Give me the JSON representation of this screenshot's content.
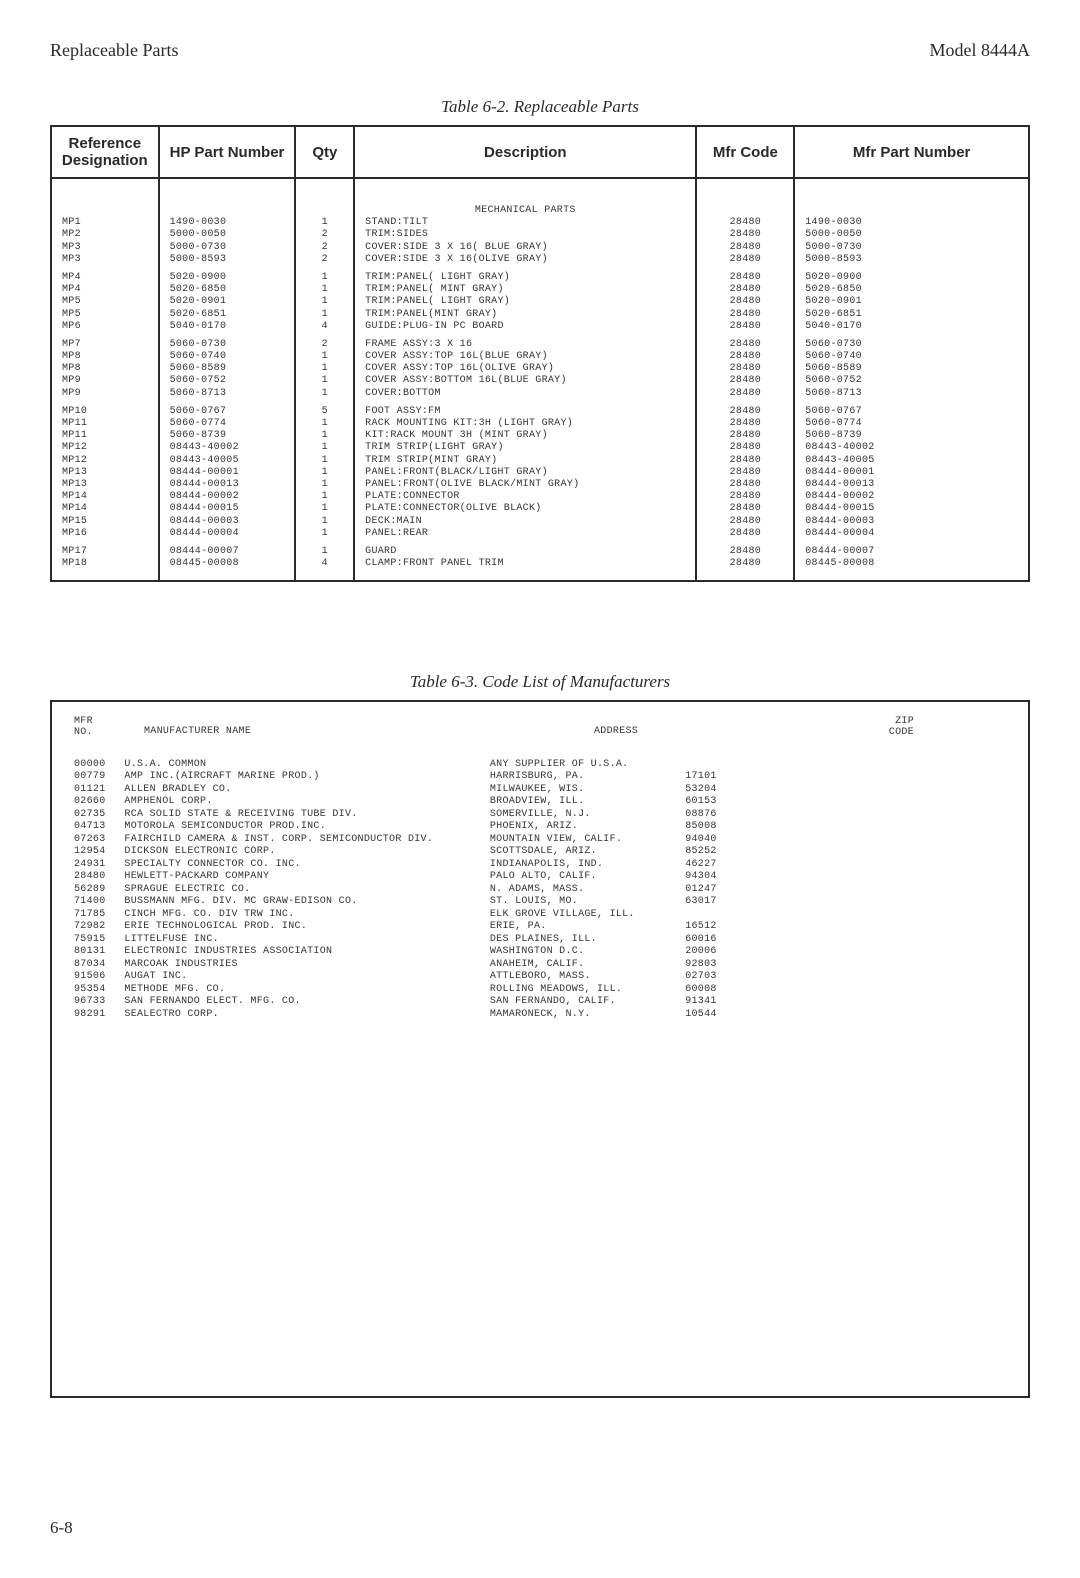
{
  "header": {
    "left": "Replaceable Parts",
    "right": "Model 8444A"
  },
  "table62": {
    "caption": "Table 6-2.  Replaceable Parts",
    "columns": [
      "Reference Designation",
      "HP Part Number",
      "Qty",
      "Description",
      "Mfr Code",
      "Mfr Part Number"
    ],
    "section_heading": "MECHANICAL PARTS",
    "groups": [
      [
        {
          "ref": "MP1",
          "hp": "1490-0030",
          "qty": "1",
          "desc": "STAND:TILT",
          "mfr": "28480",
          "mpn": "1490-0030"
        },
        {
          "ref": "MP2",
          "hp": "5000-0050",
          "qty": "2",
          "desc": "TRIM:SIDES",
          "mfr": "28480",
          "mpn": "5000-0050"
        },
        {
          "ref": "MP3",
          "hp": "5000-0730",
          "qty": "2",
          "desc": "COVER:SIDE 3 X 16( BLUE GRAY)",
          "mfr": "28480",
          "mpn": "5000-0730"
        },
        {
          "ref": "MP3",
          "hp": "5000-8593",
          "qty": "2",
          "desc": "COVER:SIDE 3 X 16(OLIVE GRAY)",
          "mfr": "28480",
          "mpn": "5000-8593"
        }
      ],
      [
        {
          "ref": "MP4",
          "hp": "5020-0900",
          "qty": "1",
          "desc": "TRIM:PANEL( LIGHT GRAY)",
          "mfr": "28480",
          "mpn": "5020-0900"
        },
        {
          "ref": "MP4",
          "hp": "5020-6850",
          "qty": "1",
          "desc": "TRIM:PANEL( MINT GRAY)",
          "mfr": "28480",
          "mpn": "5020-6850"
        },
        {
          "ref": "MP5",
          "hp": "5020-0901",
          "qty": "1",
          "desc": "TRIM:PANEL( LIGHT GRAY)",
          "mfr": "28480",
          "mpn": "5020-0901"
        },
        {
          "ref": "MP5",
          "hp": "5020-6851",
          "qty": "1",
          "desc": "TRIM:PANEL(MINT GRAY)",
          "mfr": "28480",
          "mpn": "5020-6851"
        },
        {
          "ref": "MP6",
          "hp": "5040-0170",
          "qty": "4",
          "desc": "GUIDE:PLUG-IN PC BOARD",
          "mfr": "28480",
          "mpn": "5040-0170"
        }
      ],
      [
        {
          "ref": "MP7",
          "hp": "5060-0730",
          "qty": "2",
          "desc": "FRAME ASSY:3 X 16",
          "mfr": "28480",
          "mpn": "5060-0730"
        },
        {
          "ref": "MP8",
          "hp": "5060-0740",
          "qty": "1",
          "desc": "COVER ASSY:TOP 16L(BLUE GRAY)",
          "mfr": "28480",
          "mpn": "5060-0740"
        },
        {
          "ref": "MP8",
          "hp": "5060-8589",
          "qty": "1",
          "desc": "COVER ASSY:TOP 16L(OLIVE GRAY)",
          "mfr": "28480",
          "mpn": "5060-8589"
        },
        {
          "ref": "MP9",
          "hp": "5060-0752",
          "qty": "1",
          "desc": "COVER ASSY:BOTTOM 16L(BLUE GRAY)",
          "mfr": "28480",
          "mpn": "5060-0752"
        },
        {
          "ref": "MP9",
          "hp": "5060-8713",
          "qty": "1",
          "desc": "COVER:BOTTOM",
          "mfr": "28480",
          "mpn": "5060-8713"
        }
      ],
      [
        {
          "ref": "MP10",
          "hp": "5060-0767",
          "qty": "5",
          "desc": "FOOT ASSY:FM",
          "mfr": "28480",
          "mpn": "5060-0767"
        },
        {
          "ref": "MP11",
          "hp": "5060-0774",
          "qty": "1",
          "desc": "RACK MOUNTING KIT:3H (LIGHT GRAY)",
          "mfr": "28480",
          "mpn": "5060-0774"
        },
        {
          "ref": "MP11",
          "hp": "5060-8739",
          "qty": "1",
          "desc": "KIT:RACK MOUNT 3H (MINT GRAY)",
          "mfr": "28480",
          "mpn": "5060-8739"
        },
        {
          "ref": "MP12",
          "hp": "08443-40002",
          "qty": "1",
          "desc": "TRIM STRIP(LIGHT GRAY)",
          "mfr": "28480",
          "mpn": "08443-40002"
        },
        {
          "ref": "MP12",
          "hp": "08443-40005",
          "qty": "1",
          "desc": "TRIM STRIP(MINT GRAY)",
          "mfr": "28480",
          "mpn": "08443-40005"
        },
        {
          "ref": "MP13",
          "hp": "08444-00001",
          "qty": "1",
          "desc": "PANEL:FRONT(BLACK/LIGHT GRAY)",
          "mfr": "28480",
          "mpn": "08444-00001"
        },
        {
          "ref": "MP13",
          "hp": "08444-00013",
          "qty": "1",
          "desc": "PANEL:FRONT(OLIVE BLACK/MINT GRAY)",
          "mfr": "28480",
          "mpn": "08444-00013"
        },
        {
          "ref": "MP14",
          "hp": "08444-00002",
          "qty": "1",
          "desc": "PLATE:CONNECTOR",
          "mfr": "28480",
          "mpn": "08444-00002"
        },
        {
          "ref": "MP14",
          "hp": "08444-00015",
          "qty": "1",
          "desc": "PLATE:CONNECTOR(OLIVE BLACK)",
          "mfr": "28480",
          "mpn": "08444-00015"
        },
        {
          "ref": "MP15",
          "hp": "08444-00003",
          "qty": "1",
          "desc": "DECK:MAIN",
          "mfr": "28480",
          "mpn": "08444-00003"
        },
        {
          "ref": "MP16",
          "hp": "08444-00004",
          "qty": "1",
          "desc": "PANEL:REAR",
          "mfr": "28480",
          "mpn": "08444-00004"
        }
      ],
      [
        {
          "ref": "MP17",
          "hp": "08444-00007",
          "qty": "1",
          "desc": "GUARD",
          "mfr": "28480",
          "mpn": "08444-00007"
        },
        {
          "ref": "MP18",
          "hp": "08445-00008",
          "qty": "4",
          "desc": "CLAMP:FRONT PANEL TRIM",
          "mfr": "28480",
          "mpn": "08445-00008"
        }
      ]
    ]
  },
  "table63": {
    "caption": "Table 6-3.  Code List of Manufacturers",
    "head": {
      "c1a": "MFR",
      "c1b": "NO.",
      "c2": "MANUFACTURER  NAME",
      "c3": "ADDRESS",
      "c4a": "ZIP",
      "c4b": "CODE"
    },
    "rows": [
      {
        "no": "00000",
        "name": "U.S.A. COMMON",
        "addr": "ANY SUPPLIER OF U.S.A.",
        "zip": ""
      },
      {
        "no": "00779",
        "name": "AMP INC.(AIRCRAFT MARINE PROD.)",
        "addr": "HARRISBURG, PA.",
        "zip": "17101"
      },
      {
        "no": "01121",
        "name": "ALLEN BRADLEY CO.",
        "addr": "MILWAUKEE, WIS.",
        "zip": "53204"
      },
      {
        "no": "02660",
        "name": "AMPHENOL CORP.",
        "addr": "BROADVIEW, ILL.",
        "zip": "60153"
      },
      {
        "no": "02735",
        "name": "RCA SOLID STATE & RECEIVING TUBE DIV.",
        "addr": "SOMERVILLE, N.J.",
        "zip": "08876"
      },
      {
        "no": "04713",
        "name": "MOTOROLA SEMICONDUCTOR PROD.INC.",
        "addr": "PHOENIX, ARIZ.",
        "zip": "85008"
      },
      {
        "no": "07263",
        "name": "FAIRCHILD CAMERA & INST. CORP. SEMICONDUCTOR DIV.",
        "addr": "MOUNTAIN VIEW, CALIF.",
        "zip": "94040"
      },
      {
        "no": "12954",
        "name": "DICKSON ELECTRONIC CORP.",
        "addr": "SCOTTSDALE, ARIZ.",
        "zip": "85252"
      },
      {
        "no": "24931",
        "name": "SPECIALTY CONNECTOR CO. INC.",
        "addr": "INDIANAPOLIS, IND.",
        "zip": "46227"
      },
      {
        "no": "28480",
        "name": "HEWLETT-PACKARD COMPANY",
        "addr": "PALO ALTO, CALIF.",
        "zip": "94304"
      },
      {
        "no": "56289",
        "name": "SPRAGUE ELECTRIC CO.",
        "addr": "N. ADAMS, MASS.",
        "zip": "01247"
      },
      {
        "no": "71400",
        "name": "BUSSMANN MFG. DIV. MC GRAW-EDISON CO.",
        "addr": "ST. LOUIS, MO.",
        "zip": "63017"
      },
      {
        "no": "71785",
        "name": "CINCH MFG. CO. DIV TRW INC.",
        "addr": "ELK GROVE VILLAGE, ILL.",
        "zip": ""
      },
      {
        "no": "72982",
        "name": "ERIE TECHNOLOGICAL PROD. INC.",
        "addr": "ERIE, PA.",
        "zip": "16512"
      },
      {
        "no": "75915",
        "name": "LITTELFUSE INC.",
        "addr": "DES PLAINES, ILL.",
        "zip": "60016"
      },
      {
        "no": "80131",
        "name": "ELECTRONIC INDUSTRIES ASSOCIATION",
        "addr": "WASHINGTON D.C.",
        "zip": "20006"
      },
      {
        "no": "87034",
        "name": "MARCOAK INDUSTRIES",
        "addr": "ANAHEIM, CALIF.",
        "zip": "92803"
      },
      {
        "no": "91506",
        "name": "AUGAT INC.",
        "addr": "ATTLEBORO, MASS.",
        "zip": "02703"
      },
      {
        "no": "95354",
        "name": "METHODE MFG. CO.",
        "addr": "ROLLING MEADOWS, ILL.",
        "zip": "60008"
      },
      {
        "no": "96733",
        "name": "SAN FERNANDO ELECT. MFG. CO.",
        "addr": "SAN FERNANDO, CALIF.",
        "zip": "91341"
      },
      {
        "no": "98291",
        "name": "SEALECTRO CORP.",
        "addr": "MAMARONECK, N.Y.",
        "zip": "10544"
      }
    ]
  },
  "footer": "6-8"
}
